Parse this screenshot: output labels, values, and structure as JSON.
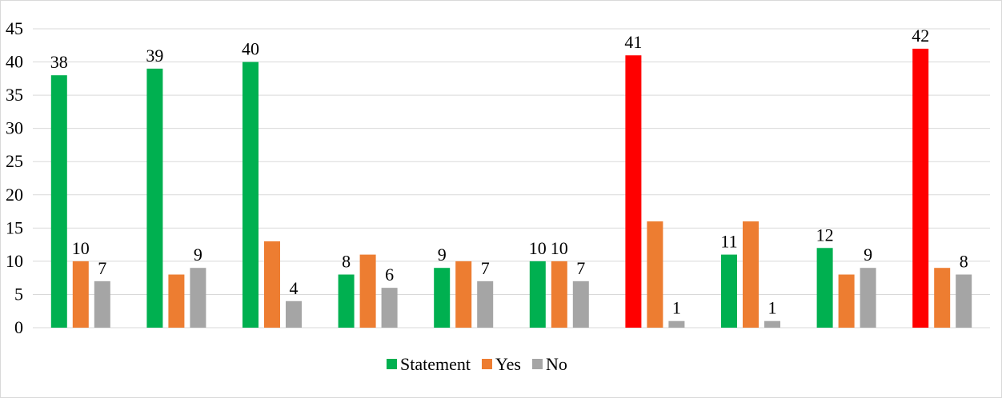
{
  "chart_data": {
    "type": "bar",
    "title": "",
    "xlabel": "",
    "ylabel": "",
    "ylim": [
      0,
      45
    ],
    "yticks": [
      0,
      5,
      10,
      15,
      20,
      25,
      30,
      35,
      40,
      45
    ],
    "grid": true,
    "legend_position": "bottom",
    "colors": {
      "statement": "#00b050",
      "statement_highlight": "#ff0000",
      "yes": "#ed7d31",
      "no": "#a5a5a5"
    },
    "series": [
      {
        "name": "Statement",
        "values": [
          38,
          39,
          40,
          8,
          9,
          10,
          41,
          11,
          12,
          42
        ]
      },
      {
        "name": "Yes",
        "values": [
          10,
          8,
          13,
          11,
          10,
          10,
          16,
          16,
          8,
          9
        ]
      },
      {
        "name": "No",
        "values": [
          7,
          9,
          4,
          6,
          7,
          7,
          1,
          1,
          9,
          8
        ]
      }
    ],
    "highlighted_statement_groups": [
      6,
      9
    ],
    "data_labels": [
      {
        "group": 0,
        "series": 0,
        "text": "38"
      },
      {
        "group": 0,
        "series": 1,
        "text": "10"
      },
      {
        "group": 0,
        "series": 2,
        "text": "7"
      },
      {
        "group": 1,
        "series": 0,
        "text": "39"
      },
      {
        "group": 1,
        "series": 2,
        "text": "9"
      },
      {
        "group": 2,
        "series": 0,
        "text": "40"
      },
      {
        "group": 2,
        "series": 2,
        "text": "4"
      },
      {
        "group": 3,
        "series": 0,
        "text": "8"
      },
      {
        "group": 3,
        "series": 2,
        "text": "6"
      },
      {
        "group": 4,
        "series": 0,
        "text": "9"
      },
      {
        "group": 4,
        "series": 2,
        "text": "7"
      },
      {
        "group": 5,
        "series": 0,
        "text": "10"
      },
      {
        "group": 5,
        "series": 1,
        "text": "10"
      },
      {
        "group": 5,
        "series": 2,
        "text": "7"
      },
      {
        "group": 6,
        "series": 0,
        "text": "41"
      },
      {
        "group": 6,
        "series": 2,
        "text": "1"
      },
      {
        "group": 7,
        "series": 0,
        "text": "11"
      },
      {
        "group": 7,
        "series": 2,
        "text": "1"
      },
      {
        "group": 8,
        "series": 0,
        "text": "12"
      },
      {
        "group": 8,
        "series": 2,
        "text": "9"
      },
      {
        "group": 9,
        "series": 0,
        "text": "42"
      },
      {
        "group": 9,
        "series": 2,
        "text": "8"
      }
    ]
  }
}
